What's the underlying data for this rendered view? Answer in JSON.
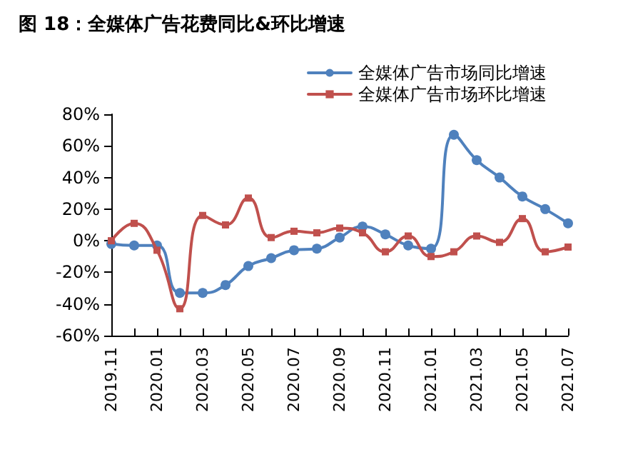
{
  "chart_data": {
    "type": "line",
    "title": "图 18：全媒体广告花费同比&环比增速",
    "categories": [
      "2019.11",
      null,
      "2020.01",
      null,
      "2020.03",
      null,
      "2020.05",
      null,
      "2020.07",
      null,
      "2020.09",
      null,
      "2020.11",
      null,
      "2021.01",
      null,
      "2021.03",
      null,
      "2021.05",
      null,
      "2021.07"
    ],
    "series": [
      {
        "name": "全媒体广告市场同比增速",
        "color": "#4f81bd",
        "marker": "circle",
        "values": [
          -2,
          -3,
          -3,
          -33,
          -33,
          -28,
          -16,
          -11,
          -6,
          -5,
          2,
          9,
          4,
          -3,
          -5,
          67,
          51,
          40,
          28,
          20,
          11
        ]
      },
      {
        "name": "全媒体广告市场环比增速",
        "color": "#c0504d",
        "marker": "square",
        "values": [
          0,
          11,
          -6,
          -43,
          16,
          10,
          27,
          2,
          6,
          5,
          8,
          5,
          -7,
          3,
          -10,
          -7,
          3,
          -1,
          14,
          -7,
          -4
        ]
      }
    ],
    "ylim": [
      -60,
      80
    ],
    "yticks": [
      {
        "value": -60,
        "label": "-60%"
      },
      {
        "value": -40,
        "label": "-40%"
      },
      {
        "value": -20,
        "label": "-20%"
      },
      {
        "value": 0,
        "label": "0%"
      },
      {
        "value": 20,
        "label": "20%"
      },
      {
        "value": 40,
        "label": "40%"
      },
      {
        "value": 60,
        "label": "60%"
      },
      {
        "value": 80,
        "label": "80%"
      }
    ],
    "legend": "top right",
    "grid": false,
    "line_style": "solid"
  }
}
